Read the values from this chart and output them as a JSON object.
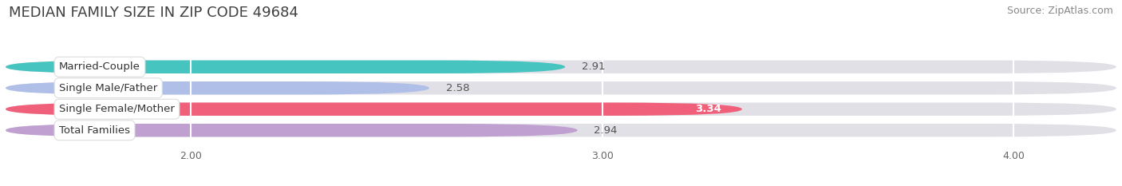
{
  "title": "MEDIAN FAMILY SIZE IN ZIP CODE 49684",
  "source": "Source: ZipAtlas.com",
  "categories": [
    "Married-Couple",
    "Single Male/Father",
    "Single Female/Mother",
    "Total Families"
  ],
  "values": [
    2.91,
    2.58,
    3.34,
    2.94
  ],
  "bar_colors": [
    "#45c4c0",
    "#b0bfe8",
    "#f0607a",
    "#c0a0d0"
  ],
  "bar_bg_color": "#e0e0e6",
  "xlim_min": 1.55,
  "xlim_max": 4.25,
  "xticks": [
    2.0,
    3.0,
    4.0
  ],
  "xtick_labels": [
    "2.00",
    "3.00",
    "4.00"
  ],
  "title_fontsize": 13,
  "source_fontsize": 9,
  "bar_label_fontsize": 9.5,
  "category_fontsize": 9.5,
  "bar_height": 0.62,
  "background_color": "#ffffff",
  "value_label_color_default": "#555555",
  "value_label_color_on_bar": "#ffffff",
  "value_label_on_bar_indices": [
    2
  ]
}
